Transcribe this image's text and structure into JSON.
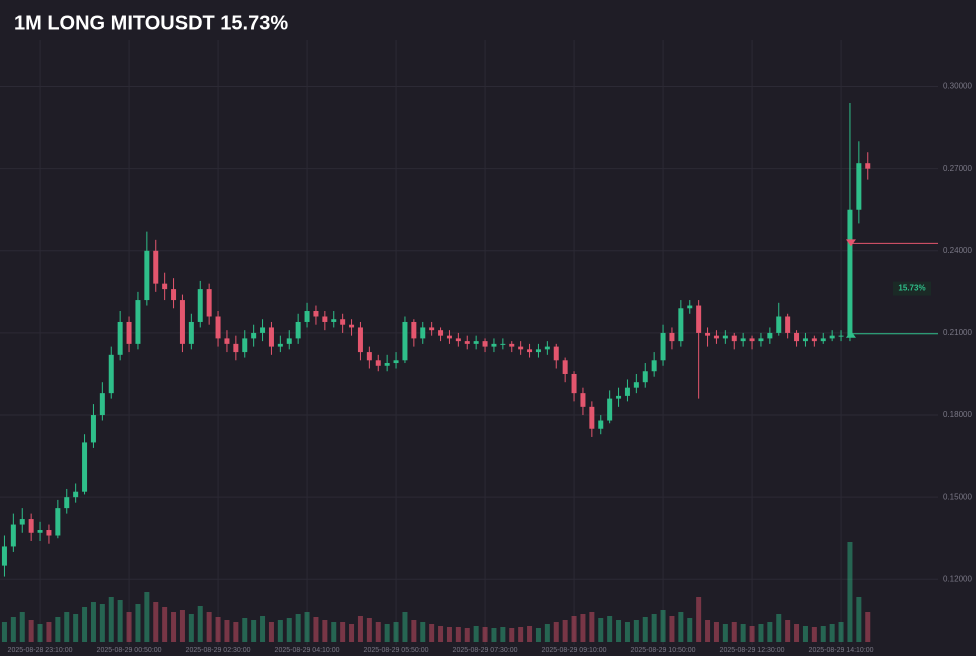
{
  "chart_data": {
    "type": "candlestick",
    "title": "1M LONG MITOUSDT 15.73%",
    "categories": [
      null,
      null,
      null,
      null,
      "2025-08-28 23:10:00",
      null,
      null,
      null,
      null,
      null,
      null,
      null,
      null,
      null,
      "2025-08-29 00:50:00",
      null,
      null,
      null,
      null,
      null,
      null,
      null,
      null,
      null,
      "2025-08-29 02:30:00",
      null,
      null,
      null,
      null,
      null,
      null,
      null,
      null,
      null,
      "2025-08-29 04:10:00",
      null,
      null,
      null,
      null,
      null,
      null,
      null,
      null,
      null,
      "2025-08-29 05:50:00",
      null,
      null,
      null,
      null,
      null,
      null,
      null,
      null,
      null,
      "2025-08-29 07:30:00",
      null,
      null,
      null,
      null,
      null,
      null,
      null,
      null,
      null,
      "2025-08-29 09:10:00",
      null,
      null,
      null,
      null,
      null,
      null,
      null,
      null,
      null,
      "2025-08-29 10:50:00",
      null,
      null,
      null,
      null,
      null,
      null,
      null,
      null,
      null,
      "2025-08-29 12:30:00",
      null,
      null,
      null,
      null,
      null,
      null,
      null,
      null,
      null,
      "2025-08-29 14:10:00",
      null,
      null,
      null
    ],
    "open": [
      0.125,
      0.132,
      0.14,
      0.142,
      0.137,
      0.138,
      0.136,
      0.146,
      0.15,
      0.152,
      0.17,
      0.18,
      0.188,
      0.202,
      0.214,
      0.206,
      0.222,
      0.24,
      0.228,
      0.226,
      0.222,
      0.206,
      0.214,
      0.226,
      0.216,
      0.208,
      0.206,
      0.203,
      0.208,
      0.21,
      0.212,
      0.205,
      0.206,
      0.208,
      0.214,
      0.218,
      0.216,
      0.214,
      0.215,
      0.213,
      0.212,
      0.203,
      0.2,
      0.198,
      0.199,
      0.2,
      0.214,
      0.208,
      0.212,
      0.211,
      0.209,
      0.208,
      0.207,
      0.206,
      0.207,
      0.205,
      0.206,
      0.206,
      0.205,
      0.204,
      0.203,
      0.204,
      0.205,
      0.2,
      0.195,
      0.188,
      0.183,
      0.175,
      0.178,
      0.186,
      0.187,
      0.19,
      0.192,
      0.196,
      0.2,
      0.21,
      0.207,
      0.219,
      0.22,
      0.21,
      0.209,
      0.208,
      0.209,
      0.207,
      0.208,
      0.207,
      0.208,
      0.21,
      0.216,
      0.21,
      0.207,
      0.208,
      0.207,
      0.208,
      0.209,
      0.209,
      0.255,
      0.272
    ],
    "high": [
      0.136,
      0.144,
      0.146,
      0.144,
      0.141,
      0.14,
      0.149,
      0.153,
      0.155,
      0.173,
      0.184,
      0.192,
      0.205,
      0.218,
      0.216,
      0.225,
      0.247,
      0.244,
      0.232,
      0.23,
      0.224,
      0.217,
      0.229,
      0.228,
      0.218,
      0.211,
      0.209,
      0.211,
      0.213,
      0.215,
      0.214,
      0.209,
      0.211,
      0.217,
      0.221,
      0.22,
      0.218,
      0.218,
      0.217,
      0.215,
      0.214,
      0.205,
      0.202,
      0.202,
      0.203,
      0.216,
      0.215,
      0.214,
      0.214,
      0.212,
      0.211,
      0.21,
      0.209,
      0.209,
      0.208,
      0.208,
      0.208,
      0.207,
      0.207,
      0.206,
      0.206,
      0.207,
      0.206,
      0.201,
      0.196,
      0.19,
      0.185,
      0.18,
      0.189,
      0.19,
      0.193,
      0.195,
      0.199,
      0.203,
      0.213,
      0.212,
      0.222,
      0.222,
      0.222,
      0.212,
      0.211,
      0.211,
      0.21,
      0.21,
      0.209,
      0.21,
      0.212,
      0.221,
      0.217,
      0.211,
      0.21,
      0.209,
      0.21,
      0.211,
      0.211,
      0.294,
      0.28,
      0.276
    ],
    "low": [
      0.121,
      0.13,
      0.137,
      0.134,
      0.134,
      0.133,
      0.135,
      0.144,
      0.148,
      0.151,
      0.168,
      0.178,
      0.186,
      0.2,
      0.203,
      0.204,
      0.22,
      0.225,
      0.222,
      0.219,
      0.203,
      0.204,
      0.212,
      0.213,
      0.205,
      0.203,
      0.2,
      0.201,
      0.205,
      0.207,
      0.202,
      0.203,
      0.204,
      0.206,
      0.212,
      0.213,
      0.211,
      0.212,
      0.21,
      0.209,
      0.2,
      0.197,
      0.196,
      0.196,
      0.197,
      0.199,
      0.205,
      0.206,
      0.209,
      0.207,
      0.206,
      0.205,
      0.204,
      0.204,
      0.203,
      0.203,
      0.204,
      0.203,
      0.202,
      0.201,
      0.201,
      0.202,
      0.197,
      0.192,
      0.185,
      0.18,
      0.172,
      0.173,
      0.177,
      0.183,
      0.185,
      0.188,
      0.19,
      0.194,
      0.198,
      0.204,
      0.205,
      0.217,
      0.186,
      0.205,
      0.206,
      0.206,
      0.204,
      0.205,
      0.204,
      0.205,
      0.206,
      0.209,
      0.208,
      0.205,
      0.205,
      0.205,
      0.206,
      0.207,
      0.207,
      0.207,
      0.25,
      0.266
    ],
    "close": [
      0.132,
      0.14,
      0.142,
      0.137,
      0.138,
      0.136,
      0.146,
      0.15,
      0.152,
      0.17,
      0.18,
      0.188,
      0.202,
      0.214,
      0.206,
      0.222,
      0.24,
      0.228,
      0.226,
      0.222,
      0.206,
      0.214,
      0.226,
      0.216,
      0.208,
      0.206,
      0.203,
      0.208,
      0.21,
      0.212,
      0.205,
      0.206,
      0.208,
      0.214,
      0.218,
      0.216,
      0.214,
      0.215,
      0.213,
      0.212,
      0.203,
      0.2,
      0.198,
      0.199,
      0.2,
      0.214,
      0.208,
      0.212,
      0.211,
      0.209,
      0.208,
      0.207,
      0.206,
      0.207,
      0.205,
      0.206,
      0.206,
      0.205,
      0.204,
      0.203,
      0.204,
      0.205,
      0.2,
      0.195,
      0.188,
      0.183,
      0.175,
      0.178,
      0.186,
      0.187,
      0.19,
      0.192,
      0.196,
      0.2,
      0.21,
      0.207,
      0.219,
      0.22,
      0.21,
      0.209,
      0.208,
      0.209,
      0.207,
      0.208,
      0.207,
      0.208,
      0.21,
      0.216,
      0.21,
      0.207,
      0.208,
      0.207,
      0.208,
      0.209,
      0.209,
      0.255,
      0.272,
      0.27
    ],
    "volume": [
      20,
      25,
      30,
      22,
      18,
      20,
      25,
      30,
      28,
      35,
      40,
      38,
      45,
      42,
      30,
      38,
      50,
      40,
      35,
      30,
      32,
      28,
      36,
      30,
      25,
      22,
      20,
      24,
      22,
      26,
      20,
      22,
      24,
      28,
      30,
      25,
      22,
      20,
      20,
      18,
      26,
      24,
      20,
      18,
      20,
      30,
      22,
      20,
      18,
      16,
      15,
      15,
      14,
      16,
      15,
      14,
      15,
      14,
      15,
      16,
      14,
      18,
      20,
      22,
      26,
      28,
      30,
      24,
      26,
      22,
      20,
      22,
      25,
      28,
      32,
      26,
      30,
      24,
      45,
      22,
      20,
      18,
      20,
      18,
      16,
      18,
      20,
      28,
      22,
      18,
      16,
      15,
      16,
      18,
      20,
      100,
      45,
      30
    ],
    "ylim": [
      0.096,
      0.317
    ],
    "yticks": [
      {
        "value": 0.12,
        "label": "0.12000"
      },
      {
        "value": 0.15,
        "label": "0.15000"
      },
      {
        "value": 0.18,
        "label": "0.18000"
      },
      {
        "value": 0.21,
        "label": "0.21000"
      },
      {
        "value": 0.24,
        "label": "0.24000"
      },
      {
        "value": 0.27,
        "label": "0.27000"
      },
      {
        "value": 0.3,
        "label": "0.30000"
      }
    ],
    "grid": true,
    "up_color": "#2fbf8a",
    "down_color": "#e4566e",
    "position": {
      "entry": 0.2097,
      "exit": 0.2427,
      "label": "15.73%"
    }
  }
}
